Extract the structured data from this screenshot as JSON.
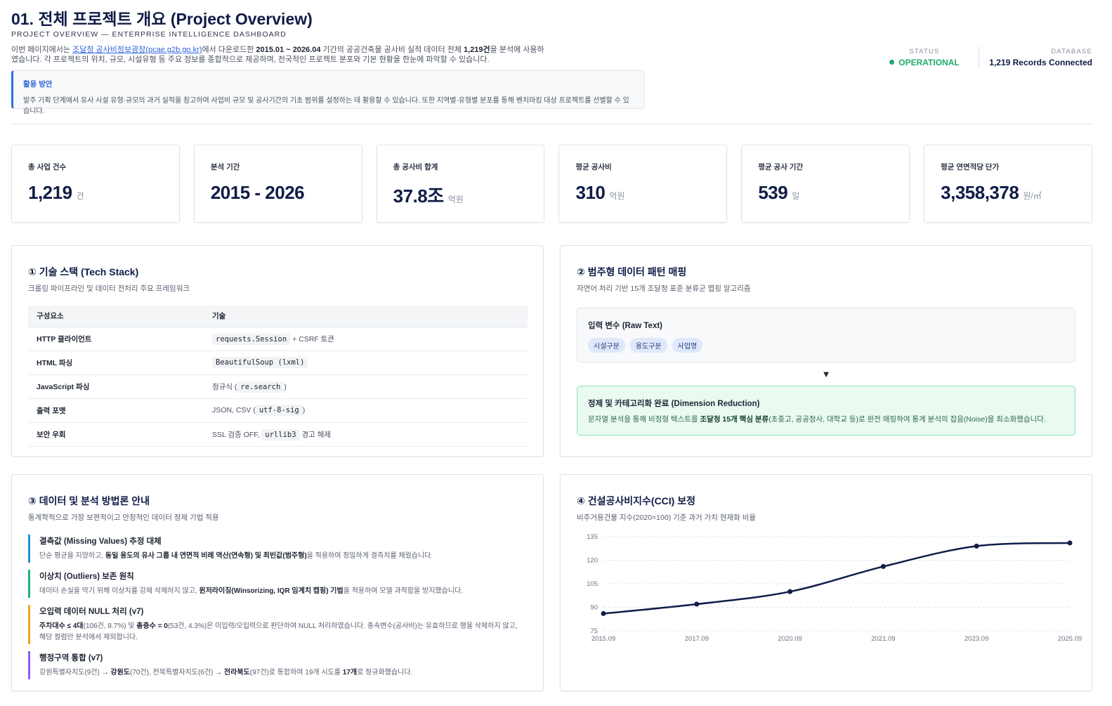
{
  "header": {
    "title": "01. 전체 프로젝트 개요 (Project Overview)",
    "subtitle": "PROJECT OVERVIEW — ENTERPRISE INTELLIGENCE DASHBOARD",
    "intro": [
      {
        "text": "이번 페이지에서는 "
      },
      {
        "text": "조달청 공사비정보광장(pcae.g2b.go.kr)",
        "style": "link"
      },
      {
        "text": "에서 다운로드한 "
      },
      {
        "text": "2015.01 ~ 2026.04",
        "style": "bold"
      },
      {
        "text": " 기간의 공공건축물 공사비 실적 데이터 전체 "
      },
      {
        "text": "1,219건",
        "style": "bold"
      },
      {
        "text": "을 분석에 사용하였습니다. 각 프로젝트의 위치, 규모, 시설유형 등 주요 정보를 종합적으로 제공하며, 전국적인 프로젝트 분포와 기본 현황을 한눈에 파악할 수 있습니다."
      }
    ]
  },
  "status": {
    "label": "STATUS",
    "value": "OPERATIONAL"
  },
  "database": {
    "label": "DATABASE",
    "value": "1,219 Records Connected"
  },
  "callout": {
    "title": "활용 방안",
    "text": "발주 기획 단계에서 유사 시설 유형·규모의 과거 실적을 참고하여 사업비 규모 및 공사기간의 기초 범위를 설정하는 데 활용할 수 있습니다. 또한 지역별·유형별 분포를 통해 벤치마킹 대상 프로젝트를 선별할 수 있습니다."
  },
  "kpis": [
    {
      "label": "총 사업 건수",
      "value": "1,219",
      "unit": "건"
    },
    {
      "label": "분석 기간",
      "value": "2015 - 2026"
    },
    {
      "label": "총 공사비 합계",
      "value": "37.8조",
      "unit": "억원"
    },
    {
      "label": "평균 공사비",
      "value": "310",
      "unit": "억원"
    },
    {
      "label": "평균 공사 기간",
      "value": "539",
      "unit": "일"
    },
    {
      "label": "평균 연면적당 단가",
      "value": "3,358,378",
      "unit": "원/㎡"
    }
  ],
  "tech_stack": {
    "title": "① 기술 스택 (Tech Stack)",
    "subtitle": "크롤링 파이프라인 및 데이터 전처리 주요 프레임워크",
    "columns": [
      "구성요소",
      "기술"
    ],
    "rows": [
      {
        "component": "HTTP 클라이언트",
        "tech": [
          {
            "text": "requests.Session",
            "style": "code"
          },
          {
            "text": " + CSRF 토큰"
          }
        ]
      },
      {
        "component": "HTML 파싱",
        "tech": [
          {
            "text": "BeautifulSoup (lxml)",
            "style": "code"
          }
        ]
      },
      {
        "component": "JavaScript 파싱",
        "tech": [
          {
            "text": "정규식 ("
          },
          {
            "text": "re.search",
            "style": "code"
          },
          {
            "text": ")"
          }
        ]
      },
      {
        "component": "출력 포맷",
        "tech": [
          {
            "text": "JSON, CSV ("
          },
          {
            "text": "utf-8-sig",
            "style": "code"
          },
          {
            "text": ")"
          }
        ]
      },
      {
        "component": "보안 우회",
        "tech": [
          {
            "text": "SSL 검증 OFF, "
          },
          {
            "text": "urllib3",
            "style": "code"
          },
          {
            "text": " 경고 해제"
          }
        ]
      }
    ]
  },
  "mapping": {
    "title": "② 범주형 데이터 패턴 매핑",
    "subtitle": "자연어 처리 기반 15개 조달청 표준 분류군 맵핑 알고리즘",
    "input_title": "입력 변수 (Raw Text)",
    "tags": [
      "시설구분",
      "용도구분",
      "사업명"
    ],
    "output_title": "정제 및 카테고리화 완료 (Dimension Reduction)",
    "output_text": [
      {
        "text": "문자열 분석을 통해 비정형 텍스트를 "
      },
      {
        "text": "조달청 15개 핵심 분류",
        "style": "bold"
      },
      {
        "text": "(초중고, 공공청사, 대학교 등)로 완전 매핑하여 통계 분석의 잡음(Noise)을 최소화했습니다."
      }
    ]
  },
  "methodology": {
    "title": "③ 데이터 및 분석 방법론 안내",
    "subtitle": "통계학적으로 가장 보편적이고 안정적인 데이터 정제 기법 적용",
    "items": [
      {
        "title": "결측값 (Missing Values) 추정 대체",
        "color": "#1e90d6",
        "text": [
          {
            "text": "단순 평균을 지양하고, "
          },
          {
            "text": "동일 용도의 유사 그룹 내 연면적 비례 역산(연속형) 및 최빈값(범주형)",
            "style": "bold"
          },
          {
            "text": "을 적용하여 정밀하게 결측치를 채웠습니다."
          }
        ]
      },
      {
        "title": "이상치 (Outliers) 보존 원칙",
        "color": "#1fb07f",
        "text": [
          {
            "text": "데이터 손실을 막기 위해 이상치를 강제 삭제하지 않고, "
          },
          {
            "text": "윈저라이징(Winsorizing, IQR 임계치 캡핑) 기법",
            "style": "bold"
          },
          {
            "text": "을 적용하여 모델 과적합을 방지했습니다."
          }
        ]
      },
      {
        "title": "오입력 데이터 NULL 처리 (v7)",
        "color": "#f3a51f",
        "text": [
          {
            "text": "주차대수 ≤ 4대",
            "style": "bold"
          },
          {
            "text": "(106건, 8.7%) 및 "
          },
          {
            "text": "총층수 = 0",
            "style": "bold"
          },
          {
            "text": "(53건, 4.3%)은 미입력/오입력으로 판단하여 NULL 처리하였습니다. 종속변수(공사비)는 유효하므로 행을 삭제하지 않고, 해당 컬럼만 분석에서 제외합니다."
          }
        ]
      },
      {
        "title": "행정구역 통합 (v7)",
        "color": "#8b5cf6",
        "text": [
          {
            "text": "강원특별자치도(9건) "
          },
          {
            "text": "→ 강원도",
            "style": "bold"
          },
          {
            "text": "(70건), 전북특별자치도(6건) "
          },
          {
            "text": "→ 전라북도",
            "style": "bold"
          },
          {
            "text": "(97건)로 통합하여 19개 시도를 "
          },
          {
            "text": "17개",
            "style": "bold"
          },
          {
            "text": "로 정규화했습니다."
          }
        ]
      }
    ]
  },
  "chart_data": {
    "type": "line",
    "title": "④ 건설공사비지수(CCI) 보정",
    "subtitle": "비주거용건물 지수(2020=100) 기준 과거 가치 현재화 비율",
    "categories": [
      "2015.09",
      "2017.09",
      "2020.09",
      "2021.09",
      "2023.09",
      "2025.09"
    ],
    "values": [
      86,
      92,
      100,
      116,
      129,
      131
    ],
    "color": "#101d4a",
    "ylim": [
      75,
      135
    ],
    "yticks": [
      75,
      90,
      105,
      120,
      135
    ],
    "grid": true
  }
}
